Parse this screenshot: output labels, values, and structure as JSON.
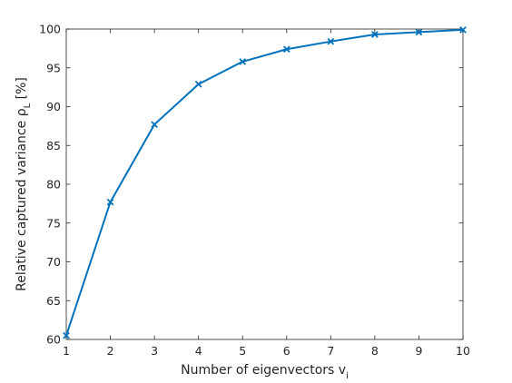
{
  "chart_data": {
    "type": "line",
    "title": "",
    "xlabel": "Number of eigenvectors v",
    "xlabel_subscript": "i",
    "ylabel": "Relative captured variance ρ",
    "ylabel_subscript": "L",
    "ylabel_unit": " [%]",
    "x": [
      1,
      2,
      3,
      4,
      5,
      6,
      7,
      8,
      9,
      10
    ],
    "series": [
      {
        "values": [
          60.5,
          77.7,
          87.7,
          92.9,
          95.8,
          97.4,
          98.4,
          99.3,
          99.6,
          99.9
        ],
        "color": "#0072BD",
        "marker": "x"
      }
    ],
    "xlim": [
      1,
      10
    ],
    "ylim": [
      60,
      100
    ],
    "xticks": [
      1,
      2,
      3,
      4,
      5,
      6,
      7,
      8,
      9,
      10
    ],
    "yticks": [
      60,
      65,
      70,
      75,
      80,
      85,
      90,
      95,
      100
    ],
    "grid": false,
    "legend": "none"
  }
}
